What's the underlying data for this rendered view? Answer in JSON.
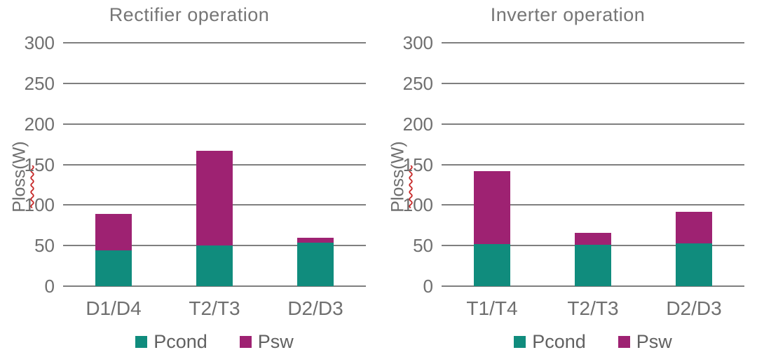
{
  "style": {
    "teal": "#108C7D",
    "magenta": "#9E2272",
    "grid_gray": "#7F7F7F",
    "text_gray": "#6F6F6F",
    "squiggle_red": "#C62828",
    "background": "#FFFFFF"
  },
  "chart_data": [
    {
      "type": "bar",
      "stacked": true,
      "title": "Rectifier operation",
      "ylabel": "Ploss(W)",
      "xlabel": "",
      "categories": [
        "D1/D4",
        "T2/T3",
        "D2/D3"
      ],
      "series": [
        {
          "name": "Pcond",
          "color": "#108C7D",
          "values": [
            44,
            50,
            54
          ]
        },
        {
          "name": "Psw",
          "color": "#9E2272",
          "values": [
            45,
            117,
            6
          ]
        }
      ],
      "totals": [
        89,
        167,
        60
      ],
      "ylim": [
        0,
        300
      ],
      "yticks": [
        0,
        50,
        100,
        150,
        200,
        250,
        300
      ],
      "grid": true,
      "legend_position": "bottom"
    },
    {
      "type": "bar",
      "stacked": true,
      "title": "Inverter operation",
      "ylabel": "Ploss(W)",
      "xlabel": "",
      "categories": [
        "T1/T4",
        "T2/T3",
        "D2/D3"
      ],
      "series": [
        {
          "name": "Pcond",
          "color": "#108C7D",
          "values": [
            52,
            51,
            53
          ]
        },
        {
          "name": "Psw",
          "color": "#9E2272",
          "values": [
            90,
            15,
            39
          ]
        }
      ],
      "totals": [
        142,
        66,
        92
      ],
      "ylim": [
        0,
        300
      ],
      "yticks": [
        0,
        50,
        100,
        150,
        200,
        250,
        300
      ],
      "grid": true,
      "legend_position": "bottom"
    }
  ]
}
